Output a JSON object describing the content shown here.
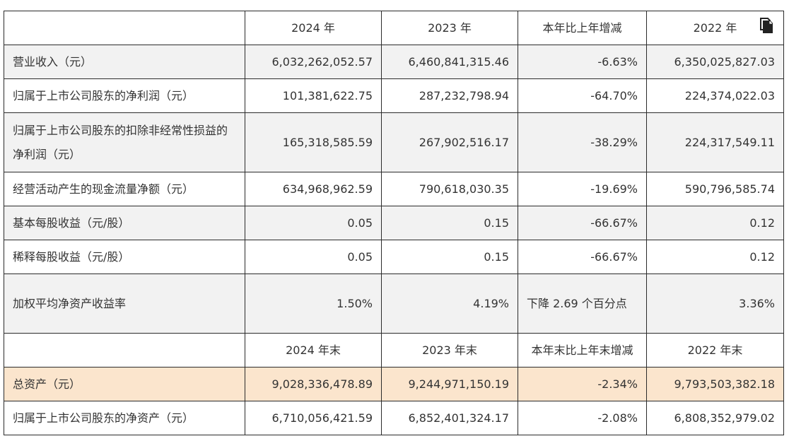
{
  "header": [
    "",
    "2024 年",
    "2023 年",
    "本年比上年增减",
    "2022 年"
  ],
  "rows": [
    {
      "label": "营业收入（元）",
      "v2024": "6,032,262,052.57",
      "v2023": "6,460,841,315.46",
      "change": "-6.63%",
      "v2022": "6,350,025,827.03"
    },
    {
      "label": "归属于上市公司股东的净利润（元）",
      "v2024": "101,381,622.75",
      "v2023": "287,232,798.94",
      "change": "-64.70%",
      "v2022": "224,374,022.03"
    },
    {
      "label": "归属于上市公司股东的扣除非经常性损益的净利润（元）",
      "v2024": "165,318,585.59",
      "v2023": "267,902,516.17",
      "change": "-38.29%",
      "v2022": "224,317,549.11"
    },
    {
      "label": "经营活动产生的现金流量净额（元）",
      "v2024": "634,968,962.59",
      "v2023": "790,618,030.35",
      "change": "-19.69%",
      "v2022": "590,796,585.74"
    },
    {
      "label": "基本每股收益（元/股）",
      "v2024": "0.05",
      "v2023": "0.15",
      "change": "-66.67%",
      "v2022": "0.12"
    },
    {
      "label": "稀释每股收益（元/股）",
      "v2024": "0.05",
      "v2023": "0.15",
      "change": "-66.67%",
      "v2022": "0.12"
    },
    {
      "label": "加权平均净资产收益率",
      "v2024": "1.50%",
      "v2023": "4.19%",
      "change": "下降 2.69 个百分点",
      "v2022": "3.36%"
    }
  ],
  "subheader": [
    "",
    "2024 年末",
    "2023 年末",
    "本年末比上年末增减",
    "2022 年末"
  ],
  "rows2": [
    {
      "label": "总资产（元）",
      "v2024": "9,028,336,478.89",
      "v2023": "9,244,971,150.19",
      "change": "-2.34%",
      "v2022": "9,793,503,382.18"
    },
    {
      "label": "归属于上市公司股东的净资产（元）",
      "v2024": "6,710,056,421.59",
      "v2023": "6,852,401,324.17",
      "change": "-2.08%",
      "v2022": "6,808,352,979.02"
    }
  ],
  "icons": {
    "copy": "copy-icon"
  }
}
